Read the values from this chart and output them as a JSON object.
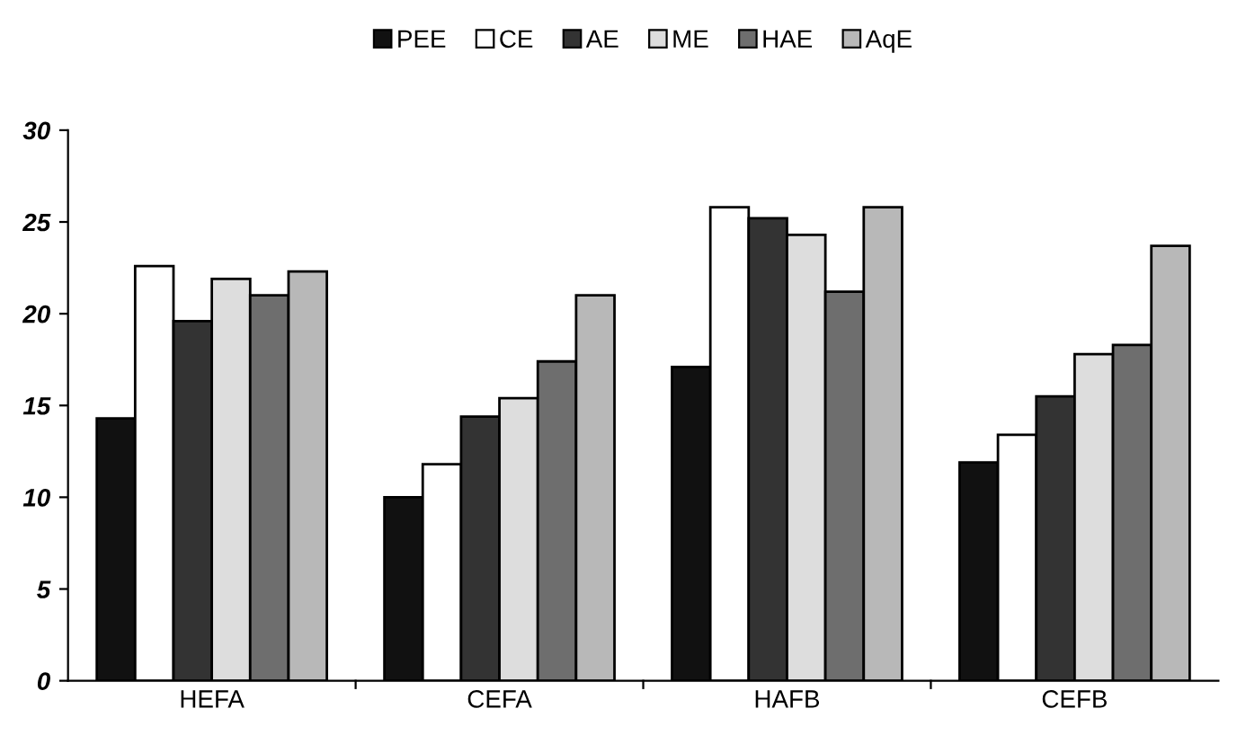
{
  "chart_data": {
    "type": "bar",
    "categories": [
      "HEFA",
      "CEFA",
      "HAFB",
      "CEFB"
    ],
    "series": [
      {
        "name": "PEE",
        "color": "#111111",
        "values": [
          14.3,
          10.0,
          17.1,
          11.9
        ]
      },
      {
        "name": "CE",
        "color": "#ffffff",
        "values": [
          22.6,
          11.8,
          25.8,
          13.4
        ]
      },
      {
        "name": "AE",
        "color": "#333333",
        "values": [
          19.6,
          14.4,
          25.2,
          15.5
        ]
      },
      {
        "name": "ME",
        "color": "#dddddd",
        "values": [
          21.9,
          15.4,
          24.3,
          17.8
        ]
      },
      {
        "name": "HAE",
        "color": "#6e6e6e",
        "values": [
          21.0,
          17.4,
          21.2,
          18.3
        ]
      },
      {
        "name": "AqE",
        "color": "#b8b8b8",
        "values": [
          22.3,
          21.0,
          25.8,
          23.7
        ]
      }
    ],
    "ylim": [
      0,
      30
    ],
    "yticks": [
      0,
      5,
      10,
      15,
      20,
      25,
      30
    ],
    "grid": false,
    "legend": "top"
  }
}
